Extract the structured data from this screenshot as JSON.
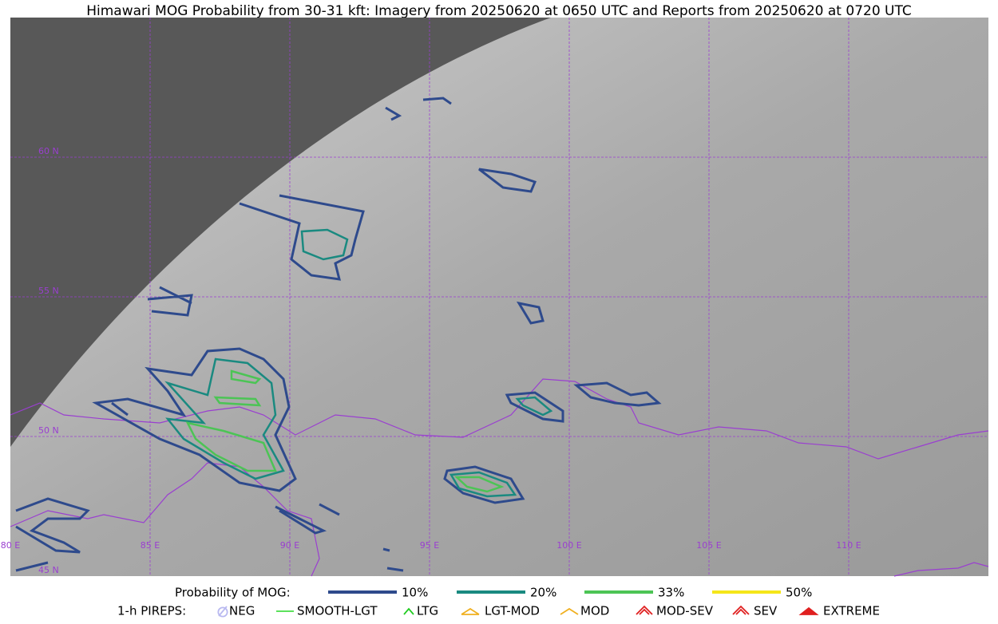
{
  "title": "Himawari MOG Probability from 30-31 kft: Imagery from 20250620 at 0650 UTC and Reports from 20250620 at 0720 UTC",
  "lat_labels": [
    "60 N",
    "55 N",
    "50 N",
    "45 N"
  ],
  "lon_labels": [
    "80 E",
    "85 E",
    "90 E",
    "95 E",
    "100 E",
    "105 E",
    "110 E"
  ],
  "mog_legend": {
    "label": "Probability of MOG:",
    "entries": [
      {
        "name": "10%",
        "color": "#2e4a8c"
      },
      {
        "name": "20%",
        "color": "#1a8a80"
      },
      {
        "name": "33%",
        "color": "#4cc455"
      },
      {
        "name": "50%",
        "color": "#f5e61a"
      }
    ]
  },
  "pirep_legend": {
    "label": "1-h PIREPS:",
    "entries": [
      {
        "name": "NEG",
        "color": "#b9b9f0"
      },
      {
        "name": "SMOOTH-LGT",
        "color": "#44dd44"
      },
      {
        "name": "LTG",
        "color": "#22cc22"
      },
      {
        "name": "LGT-MOD",
        "color": "#f0b020"
      },
      {
        "name": "MOD",
        "color": "#f0b020"
      },
      {
        "name": "MOD-SEV",
        "color": "#e02020"
      },
      {
        "name": "SEV",
        "color": "#e02020"
      },
      {
        "name": "EXTREME",
        "color": "#e02020"
      }
    ]
  }
}
